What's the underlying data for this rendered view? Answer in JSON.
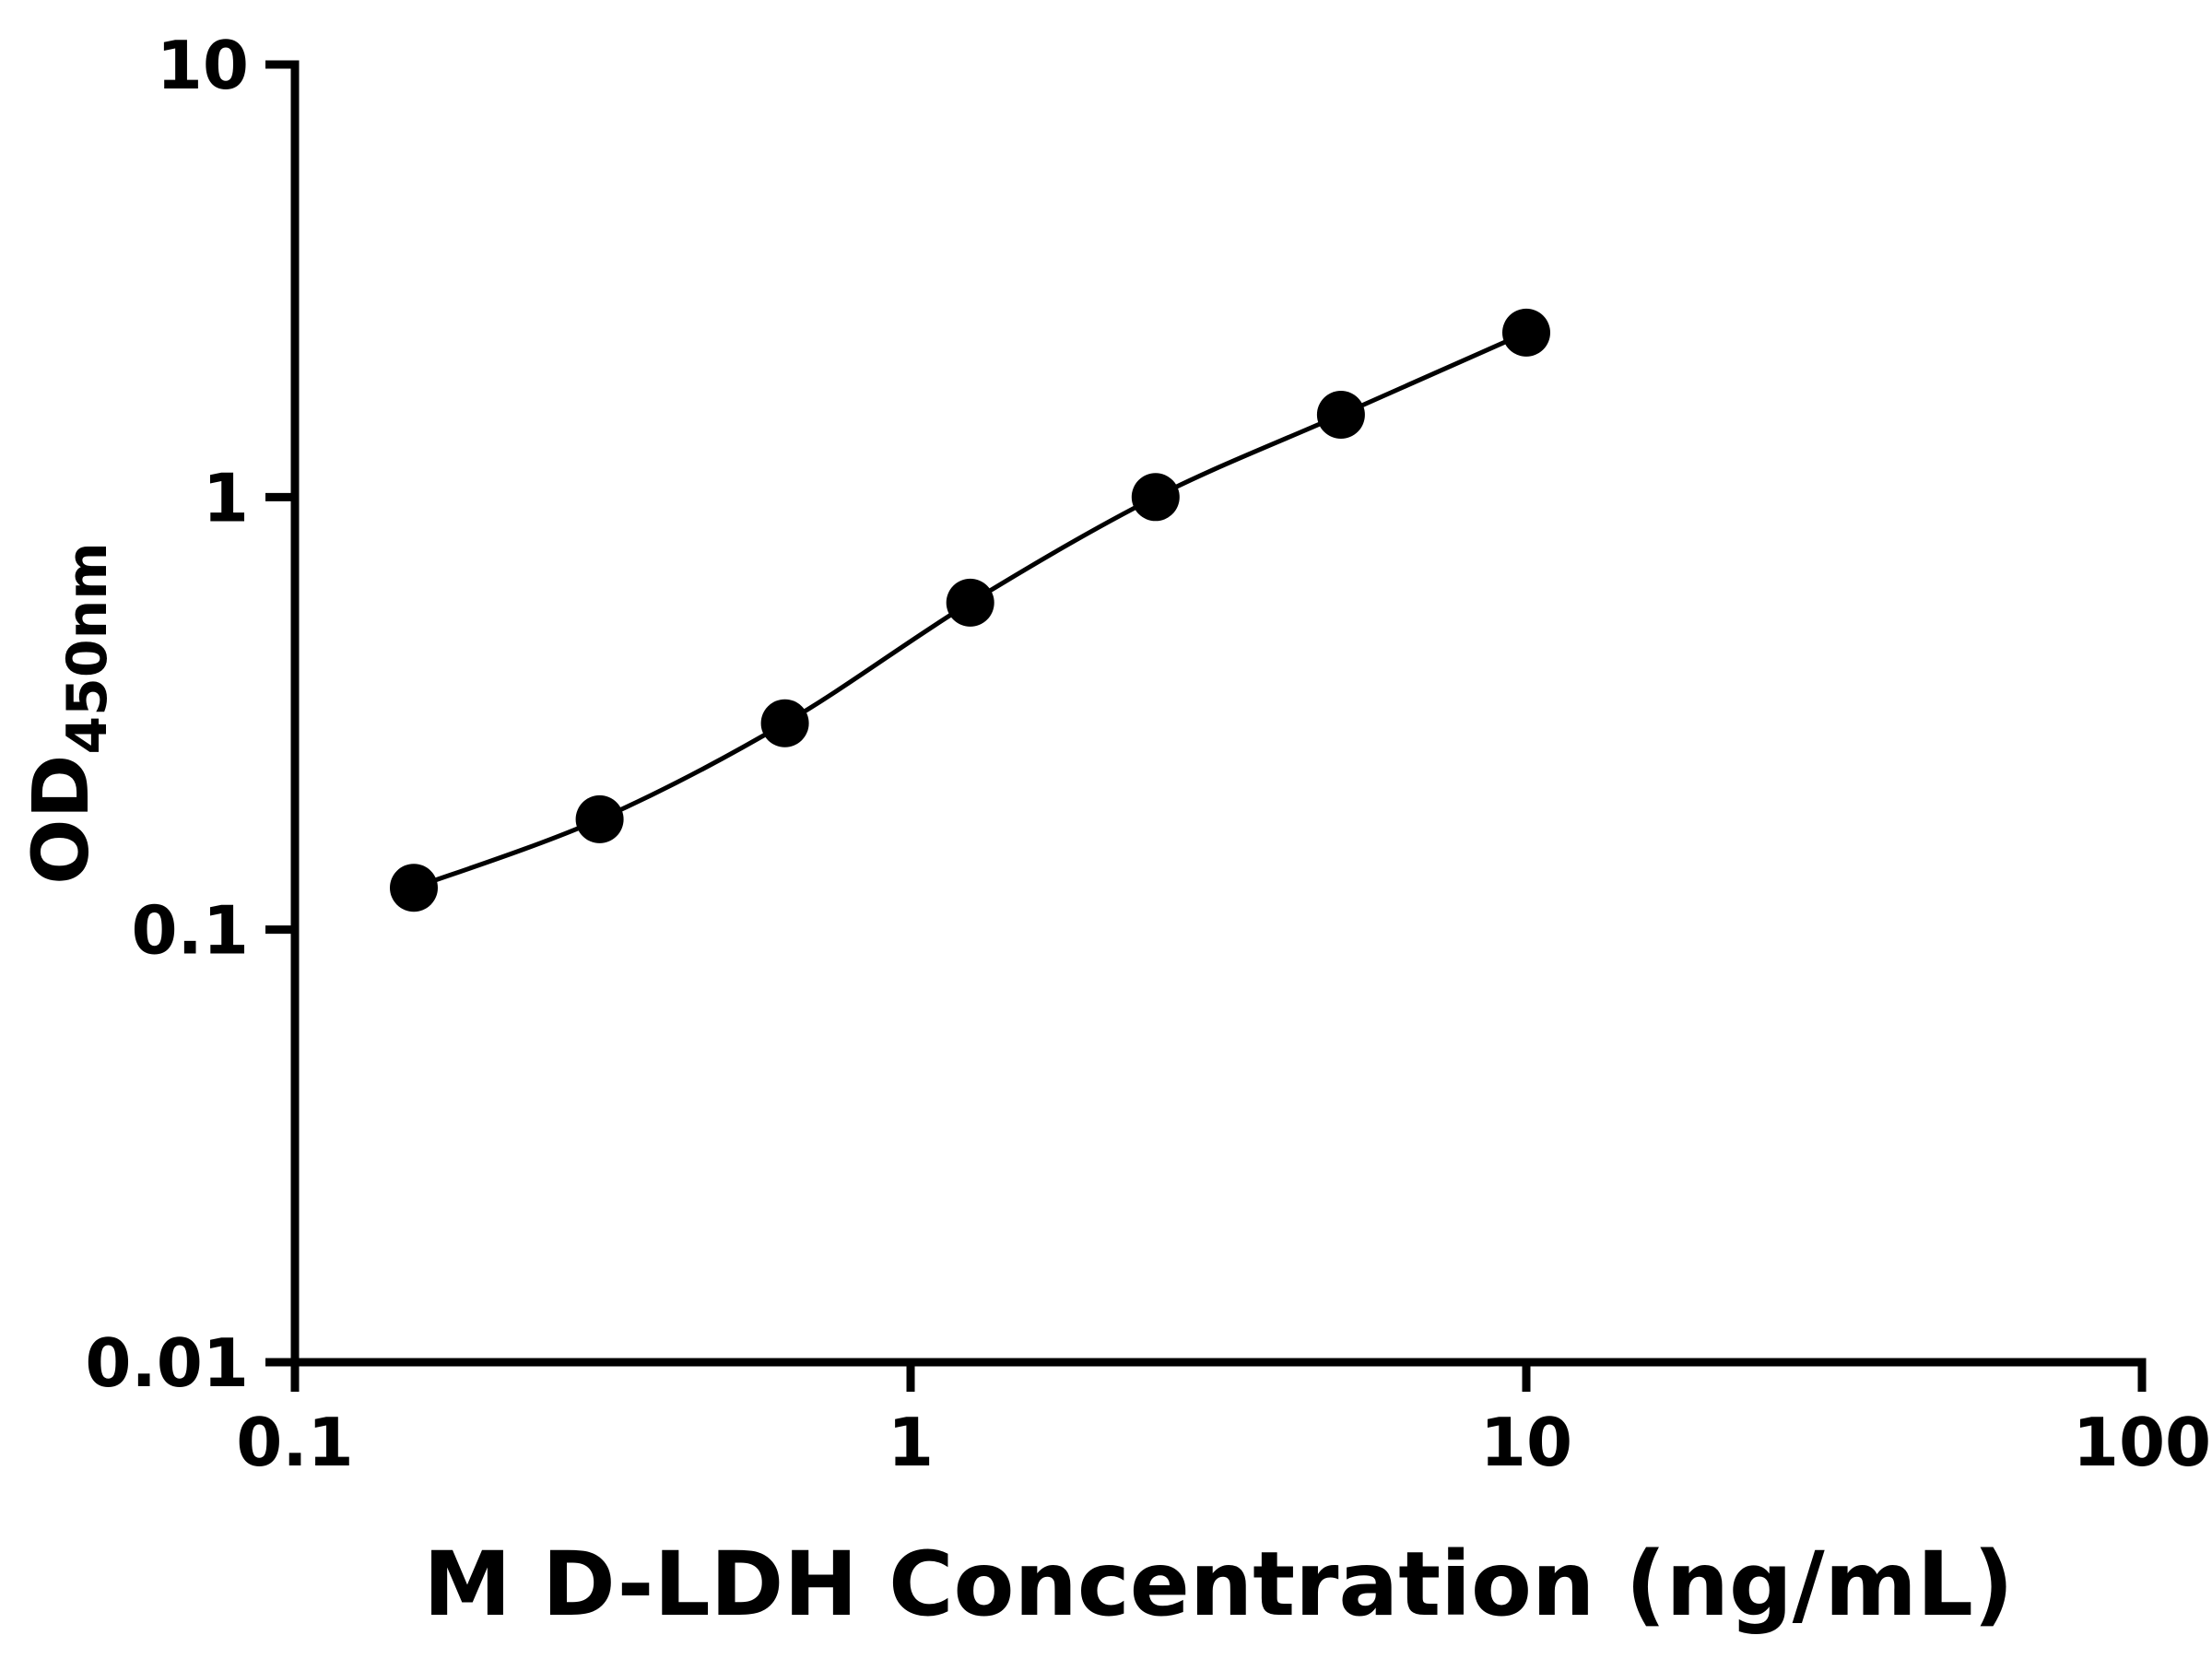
{
  "page": {
    "background": "#ffffff"
  },
  "chart_data": {
    "type": "scatter",
    "title": "",
    "xlabel": "M D-LDH Concentration (ng/mL)",
    "ylabel": "OD",
    "ylabel_subscript": "450nm",
    "x_scale": "log",
    "y_scale": "log",
    "xlim": [
      0.1,
      100
    ],
    "ylim": [
      0.01,
      10
    ],
    "x_ticks": [
      0.1,
      1,
      10,
      100
    ],
    "x_tick_labels": [
      "0.1",
      "1",
      "10",
      "100"
    ],
    "y_ticks": [
      0.01,
      0.1,
      1,
      10
    ],
    "y_tick_labels": [
      "0.01",
      "0.1",
      "1",
      "10"
    ],
    "grid": false,
    "legend": "none",
    "series": [
      {
        "marker": "circle",
        "color": "#000000",
        "line_color": "#000000",
        "points": [
          {
            "x": 0.156,
            "y": 0.125
          },
          {
            "x": 0.3125,
            "y": 0.18
          },
          {
            "x": 0.625,
            "y": 0.3
          },
          {
            "x": 1.25,
            "y": 0.57
          },
          {
            "x": 2.5,
            "y": 1.0
          },
          {
            "x": 5,
            "y": 1.55
          },
          {
            "x": 10,
            "y": 2.4
          }
        ]
      }
    ]
  },
  "style": {
    "axis_color": "#000000",
    "marker_radius": 26,
    "curve_width": 5,
    "axis_width": 9,
    "tick_length": 32
  }
}
